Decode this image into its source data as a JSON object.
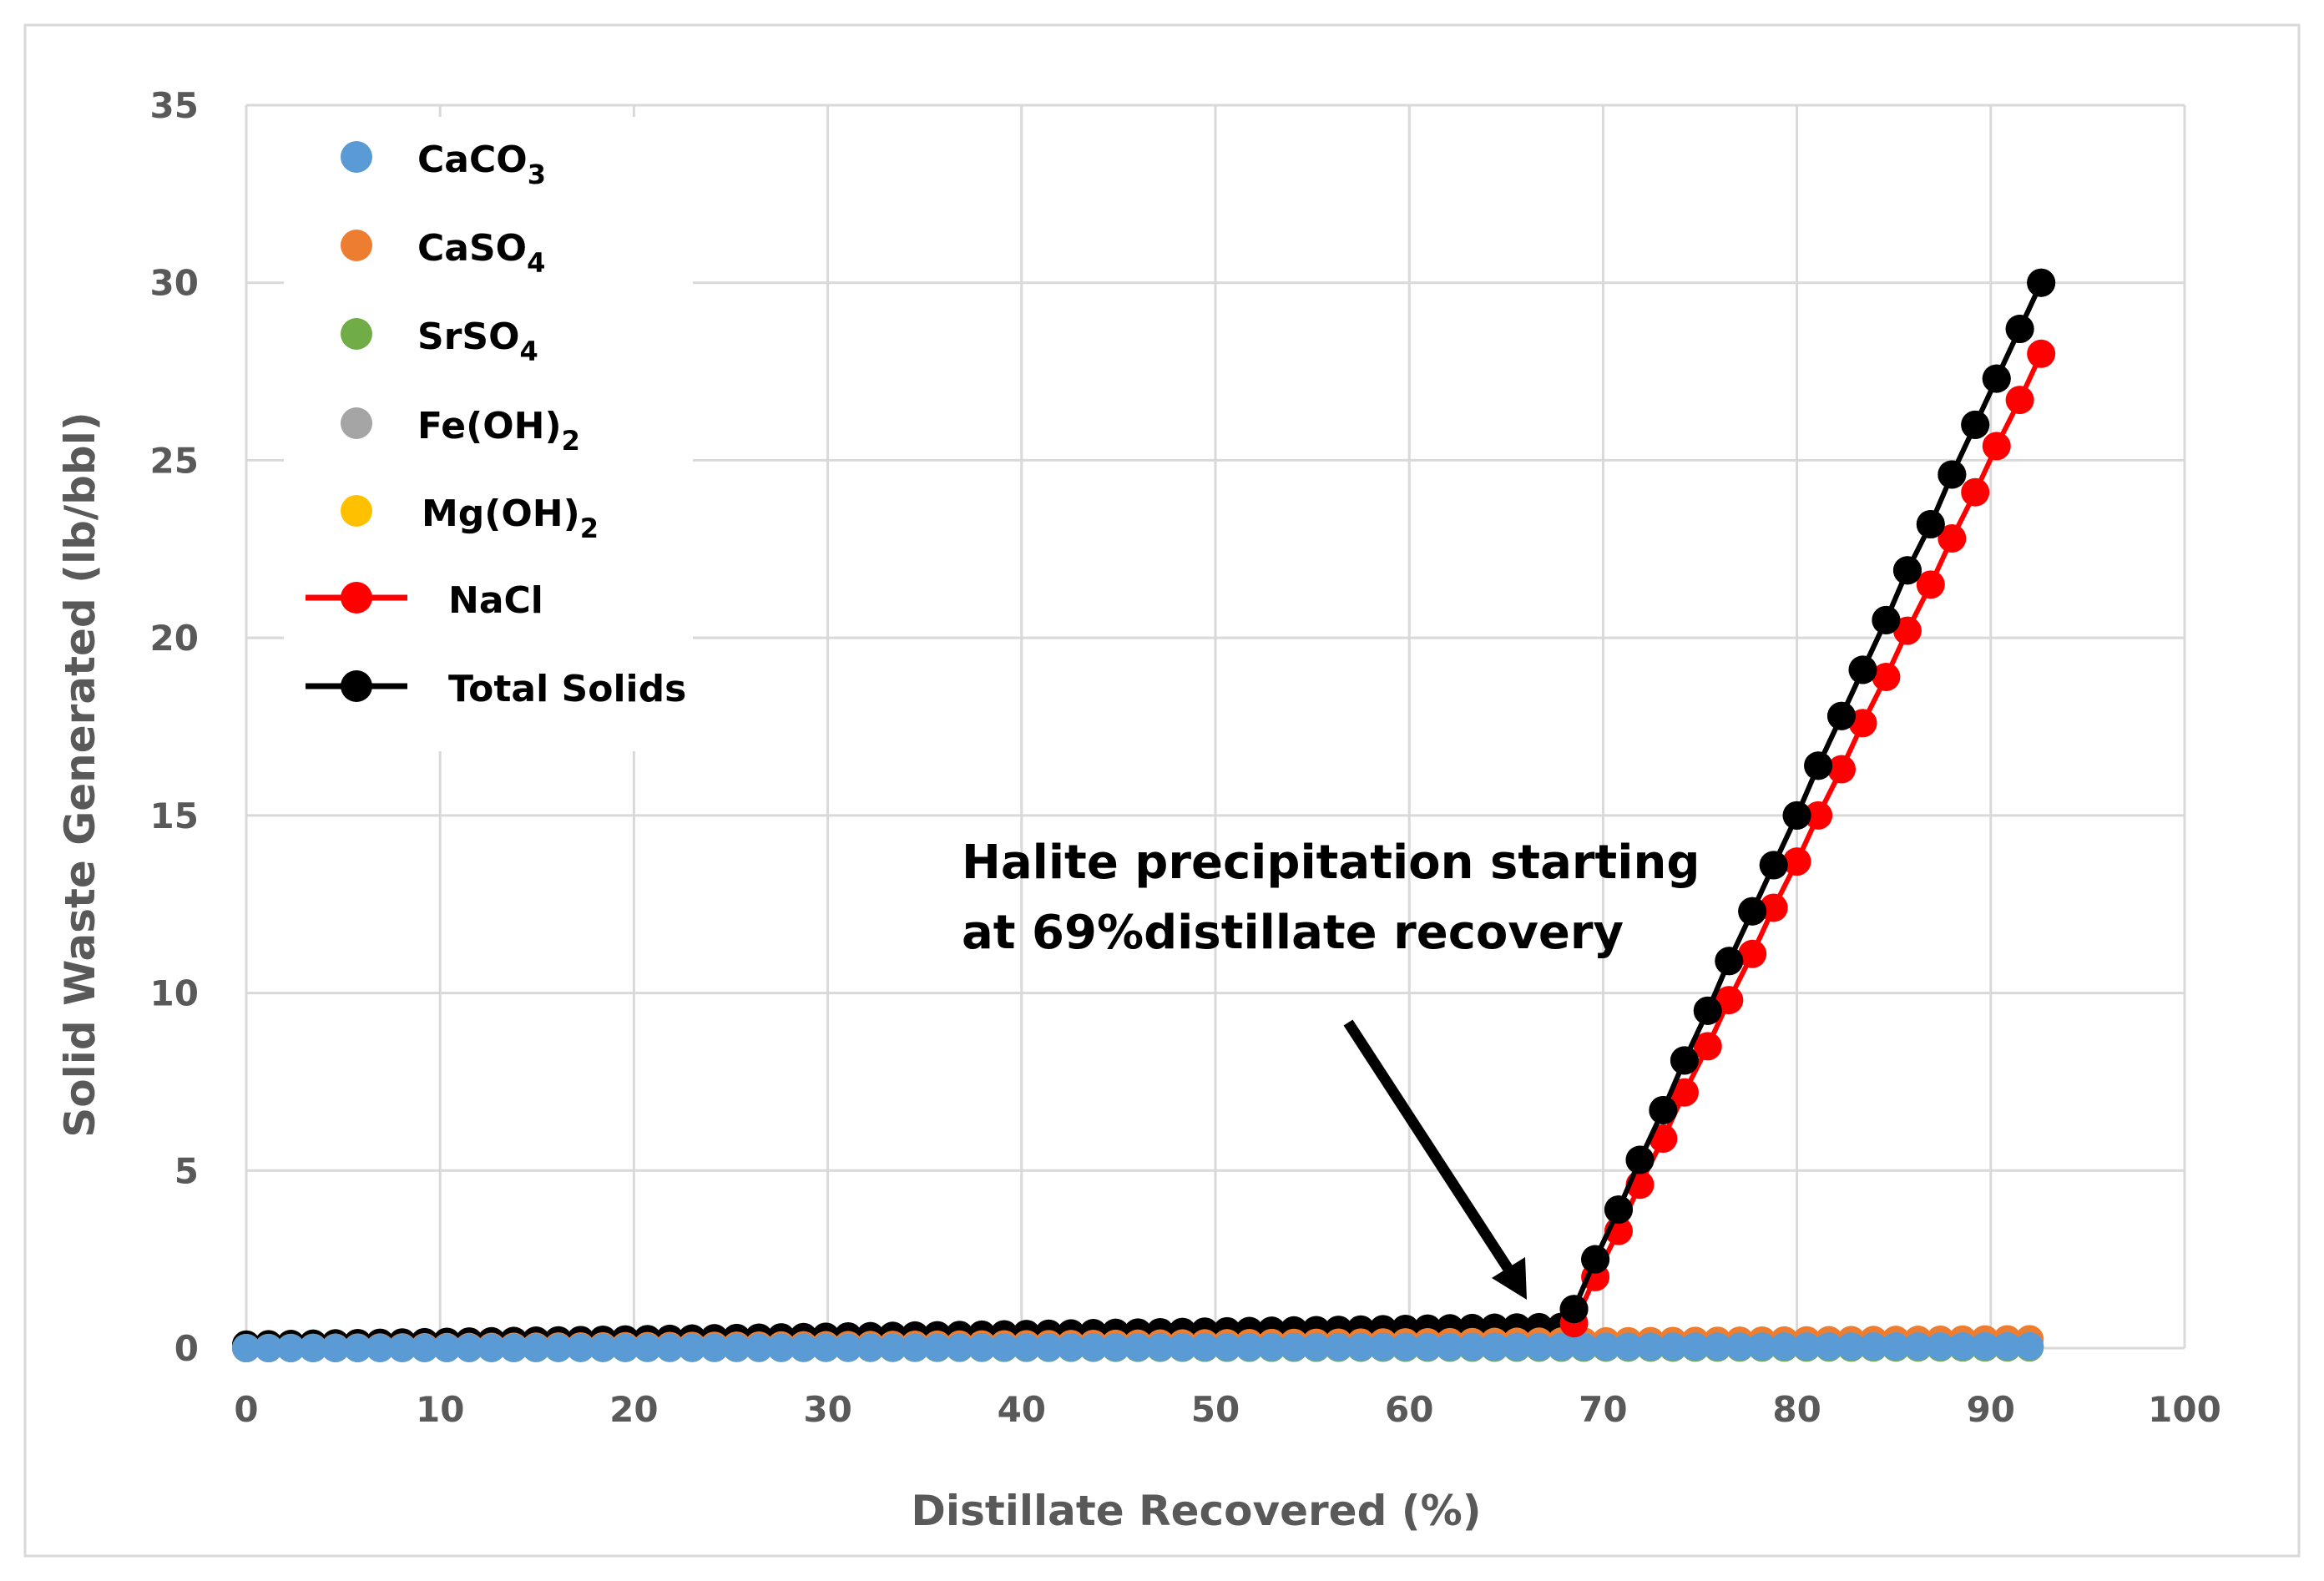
{
  "chart_data": {
    "type": "scatter",
    "title": "",
    "xlabel": "Distillate Recovered (%)",
    "ylabel": "Solid Waste Generated (lb/bbl)",
    "xlim": [
      0,
      100
    ],
    "ylim": [
      0,
      35
    ],
    "xticks": [
      "0",
      "10",
      "20",
      "30",
      "40",
      "50",
      "60",
      "70",
      "80",
      "90",
      "100"
    ],
    "yticks": [
      "0",
      "5",
      "10",
      "15",
      "20",
      "25",
      "30",
      "35"
    ],
    "grid": true,
    "legend_position": "top-left",
    "annotation": {
      "line1": "Halite precipitation starting",
      "line2": "at 69%distillate recovery",
      "arrow_to": [
        68.5,
        0.3
      ]
    },
    "x_start": 0,
    "x_step": 1.15,
    "series": [
      {
        "name": "CaCO",
        "sub": "3",
        "color": "#5b9bd5",
        "style": "markers",
        "y_start": 0.0,
        "y_end": 0.05
      },
      {
        "name": "CaSO",
        "sub": "4",
        "color": "#ed7d31",
        "style": "markers",
        "y_start": 0.0,
        "y_end": 0.25
      },
      {
        "name": "SrSO",
        "sub": "4",
        "color": "#70ad47",
        "style": "markers",
        "y_start": 0.0,
        "y_end": 0.02
      },
      {
        "name": "Fe(OH)",
        "sub": "2",
        "color": "#a5a5a5",
        "style": "markers",
        "y_start": 0.0,
        "y_end": 0.02
      },
      {
        "name": "Mg(OH)",
        "sub": "2",
        "color": "#ffc000",
        "style": "markers",
        "y_start": 0.0,
        "y_end": 0.1
      },
      {
        "name": "NaCl",
        "sub": "",
        "color": "#ff0000",
        "style": "line-markers",
        "x": [
          68.5,
          69.6,
          70.8,
          71.9,
          73.1,
          74.2,
          75.4,
          76.5,
          77.7,
          78.8,
          80.0,
          81.1,
          82.3,
          83.4,
          84.6,
          85.7,
          86.9,
          88.0,
          89.2,
          90.3,
          91.5,
          92.6
        ],
        "values": [
          0.7,
          2.0,
          3.3,
          4.6,
          5.9,
          7.2,
          8.5,
          9.8,
          11.1,
          12.4,
          13.7,
          15.0,
          16.3,
          17.6,
          18.9,
          20.2,
          21.5,
          22.8,
          24.1,
          25.4,
          26.7,
          28.0
        ]
      },
      {
        "name": "Total Solids",
        "sub": "",
        "color": "#000000",
        "style": "line-markers",
        "x_start": 0,
        "x_step": 1.15,
        "y_start": 0.1,
        "y_end": 0.6,
        "x_tail": [
          68.5,
          69.6,
          70.8,
          71.9,
          73.1,
          74.2,
          75.4,
          76.5,
          77.7,
          78.8,
          80.0,
          81.1,
          82.3,
          83.4,
          84.6,
          85.7,
          86.9,
          88.0,
          89.2,
          90.3,
          91.5,
          92.6
        ],
        "values_tail": [
          1.1,
          2.5,
          3.9,
          5.3,
          6.7,
          8.1,
          9.5,
          10.9,
          12.3,
          13.6,
          15.0,
          16.4,
          17.8,
          19.1,
          20.5,
          21.9,
          23.2,
          24.6,
          26.0,
          27.3,
          28.7,
          30.0
        ]
      }
    ]
  }
}
